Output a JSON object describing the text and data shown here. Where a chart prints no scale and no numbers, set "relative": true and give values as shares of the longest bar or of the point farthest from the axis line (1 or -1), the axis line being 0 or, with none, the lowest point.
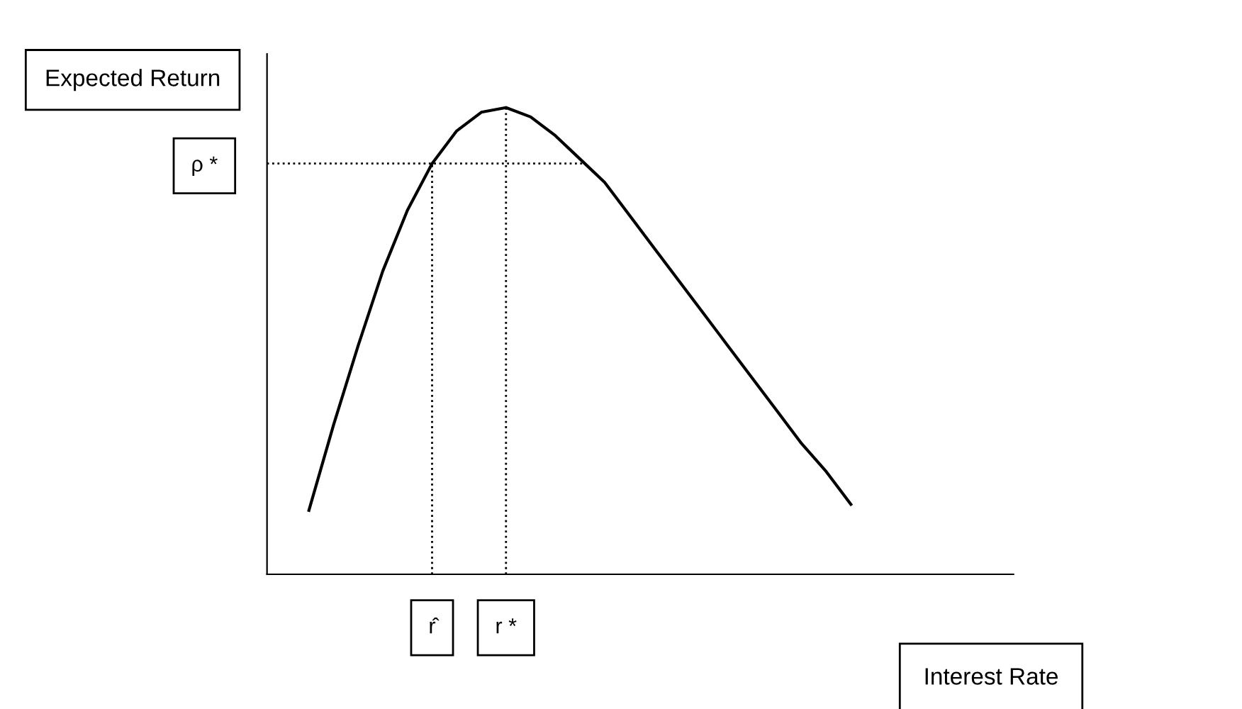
{
  "chart_data": {
    "type": "line",
    "relative": true,
    "xlabel": "Interest Rate",
    "ylabel": "Expected Return",
    "categories": [
      null,
      null,
      null,
      null,
      null,
      "r̂",
      null,
      null,
      "r *",
      null,
      null,
      null,
      null,
      null,
      null,
      null,
      null,
      null,
      null,
      null,
      null,
      null,
      null
    ],
    "series": [
      {
        "color": "#000000",
        "values": [
          0.137,
          0.32,
          0.49,
          0.65,
          0.78,
          0.88,
          0.95,
          0.99,
          1.0,
          0.98,
          0.94,
          0.89,
          0.84,
          0.77,
          0.7,
          0.63,
          0.56,
          0.49,
          0.42,
          0.35,
          0.28,
          0.22,
          0.15
        ]
      }
    ],
    "ref_lines": [
      {
        "axis": "y",
        "value": 0.88,
        "label": "ρ *",
        "line_style": "dotted",
        "color": "#000000"
      },
      {
        "axis": "x",
        "value": "r̂",
        "line_style": "dotted",
        "color": "#000000"
      },
      {
        "axis": "x",
        "value": "r *",
        "line_style": "dotted",
        "color": "#000000"
      }
    ],
    "grid": false,
    "legend": false,
    "marker": "none",
    "line_style": "solid"
  }
}
